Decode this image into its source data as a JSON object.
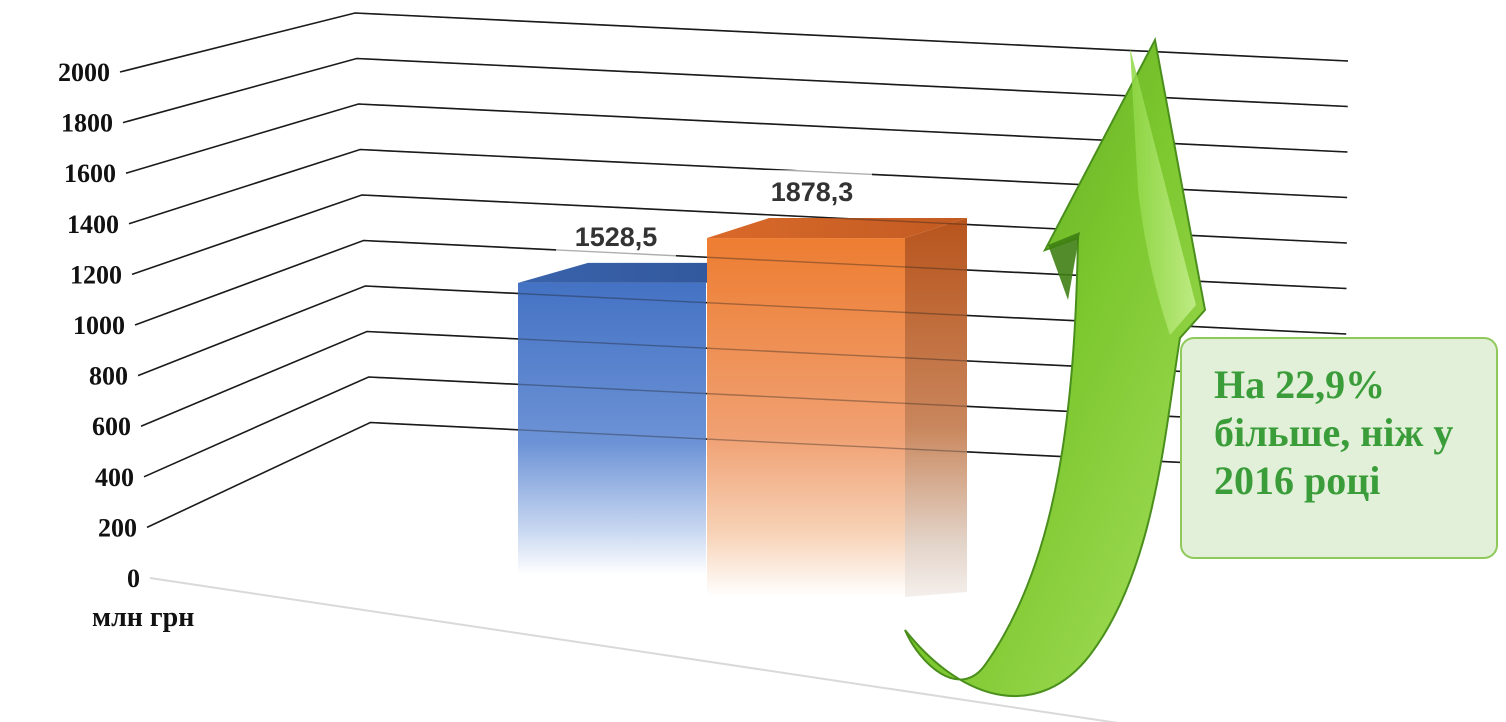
{
  "chart_data": {
    "type": "bar",
    "categories": [
      "",
      ""
    ],
    "series": [
      {
        "values": [
          1528.5,
          1878.3
        ]
      }
    ],
    "data_labels": [
      "1528,5",
      "1878,3"
    ],
    "bar_colors": [
      "#4472c4",
      "#ed7d31"
    ],
    "ylim": [
      0,
      2000
    ],
    "y_ticks": [
      "0",
      "200",
      "400",
      "600",
      "800",
      "1000",
      "1200",
      "1400",
      "1600",
      "1800",
      "2000"
    ],
    "ylabel": "млн грн",
    "grid": true,
    "style": "3d-column"
  },
  "annotation": {
    "lines": [
      "На 22,9%",
      "більше, ніж у",
      "2016 році"
    ],
    "color": "#3a9d3a",
    "background": "#e2f0d9",
    "arrow_icon": "green-up-arrow-icon"
  }
}
